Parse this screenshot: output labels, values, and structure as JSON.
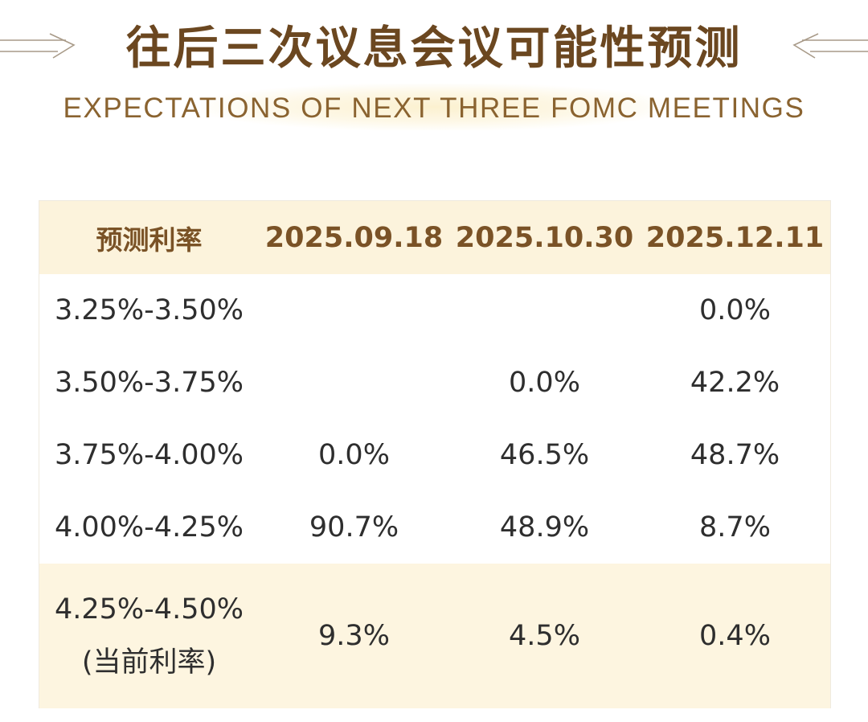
{
  "header": {
    "title_cn": "往后三次议息会议可能性预测",
    "title_en": "EXPECTATIONS OF NEXT THREE FOMC MEETINGS"
  },
  "table": {
    "columns": [
      "预测利率",
      "2025.09.18",
      "2025.10.30",
      "2025.12.11"
    ],
    "rows": [
      {
        "rate": "3.25%-3.50%",
        "values": [
          "",
          "",
          "0.0%"
        ]
      },
      {
        "rate": "3.50%-3.75%",
        "values": [
          "",
          "0.0%",
          "42.2%"
        ]
      },
      {
        "rate": "3.75%-4.00%",
        "values": [
          "0.0%",
          "46.5%",
          "48.7%"
        ]
      },
      {
        "rate": "4.00%-4.25%",
        "values": [
          "90.7%",
          "48.9%",
          "8.7%"
        ]
      }
    ],
    "current": {
      "rate": "4.25%-4.50%",
      "note": "(当前利率)",
      "values": [
        "9.3%",
        "4.5%",
        "0.4%"
      ]
    }
  },
  "colors": {
    "title": "#6b4720",
    "subtitle": "#8a6330",
    "header_bg": "#fcf3dc",
    "current_bg": "#fdf5e0",
    "text": "#2e2e2e"
  }
}
